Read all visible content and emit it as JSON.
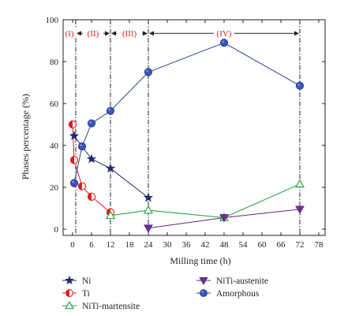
{
  "chart_data": {
    "type": "line",
    "xlabel": "Milling time (h)",
    "ylabel": "Phases percentage (%)",
    "xlim": [
      -3,
      80
    ],
    "ylim": [
      -3,
      100
    ],
    "xticks": [
      0,
      6,
      12,
      18,
      24,
      30,
      36,
      42,
      48,
      54,
      60,
      66,
      72,
      78
    ],
    "yticks": [
      0,
      20,
      40,
      60,
      80,
      100
    ],
    "stage_boundaries": [
      1,
      12,
      24,
      72
    ],
    "stages": [
      {
        "label": "(I)",
        "from": -3,
        "to": 1
      },
      {
        "label": "(II)",
        "from": 1,
        "to": 12
      },
      {
        "label": "(III)",
        "from": 12,
        "to": 24
      },
      {
        "label": "(IV)",
        "from": 24,
        "to": 72
      }
    ],
    "legend_position": "bottom",
    "series": [
      {
        "name": "Ni",
        "marker": "star",
        "color": "#1f2a6e",
        "fill": "#1f2a6e",
        "x": [
          0.5,
          6,
          12,
          24
        ],
        "y": [
          44.5,
          33.5,
          29,
          15
        ]
      },
      {
        "name": "Ti",
        "marker": "half-circle",
        "color": "#e01f26",
        "fill": "#e01f26",
        "x": [
          0,
          0.5,
          3,
          6,
          12
        ],
        "y": [
          50,
          33,
          20.5,
          15.5,
          8
        ]
      },
      {
        "name": "NiTi-martensite",
        "marker": "triangle-up",
        "color": "#1e9e3a",
        "fill": "none",
        "x": [
          12,
          24,
          48,
          72
        ],
        "y": [
          6.5,
          9,
          5.5,
          21.5
        ]
      },
      {
        "name": "NiTi-austenite",
        "marker": "triangle-down",
        "color": "#5b2a86",
        "fill": "#6f2f8f",
        "x": [
          24,
          48,
          72
        ],
        "y": [
          0.5,
          5.5,
          9.5
        ]
      },
      {
        "name": "Amorphous",
        "marker": "circle",
        "color": "#2c3f97",
        "fill": "#3a55b8",
        "x": [
          0.5,
          3,
          6,
          12,
          24,
          48,
          72
        ],
        "y": [
          22,
          39.5,
          50.5,
          56.5,
          75,
          89,
          68.5
        ]
      }
    ]
  }
}
